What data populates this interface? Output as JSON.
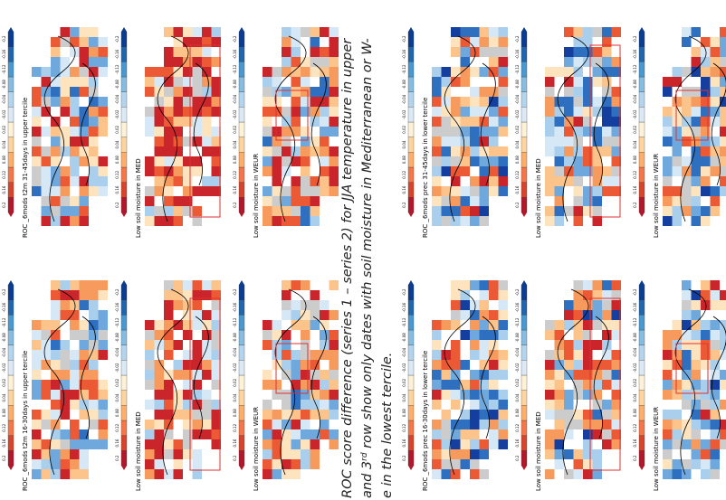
{
  "panels": [
    {
      "label": "ROC _6mods t2m 31-45days in upper tercile"
    },
    {
      "label": "Low soil moisture in MED"
    },
    {
      "label": "Low soil moisture in WEUR"
    },
    {
      "label": "ROC _6mods t2m 16-30days in upper tercile"
    },
    {
      "label": "Low soil moisture in MED"
    },
    {
      "label": "Low soil moisture in WEUR"
    },
    {
      "label": "ROC _6mods prec 31-45days in lower tercile"
    },
    {
      "label": "Low soil moisture in MED"
    },
    {
      "label": "Low soil moisture in WEUR"
    },
    {
      "label": "ROC _6mods prec 16-30days in lower tercile"
    },
    {
      "label": "Low soil moisture in MED"
    },
    {
      "label": "Low soil moisture in WEUR"
    }
  ],
  "colorbar_labels": [
    "0.2",
    "0.16",
    "0.12",
    "0.08",
    "0.04",
    "0.02",
    "-0.02",
    "-0.04",
    "-0.08",
    "-0.12",
    "-0.16",
    "-0.2"
  ],
  "caption": {
    "line1": "ROC score difference (series 1 – series 2) for JJA temperature in upper",
    "line2_a": "and 3",
    "line2_sup": "rd",
    "line2_b": " row show only dates with soil moisture in Mediterranean or W-",
    "line3": "e in the lowest tercile."
  }
}
